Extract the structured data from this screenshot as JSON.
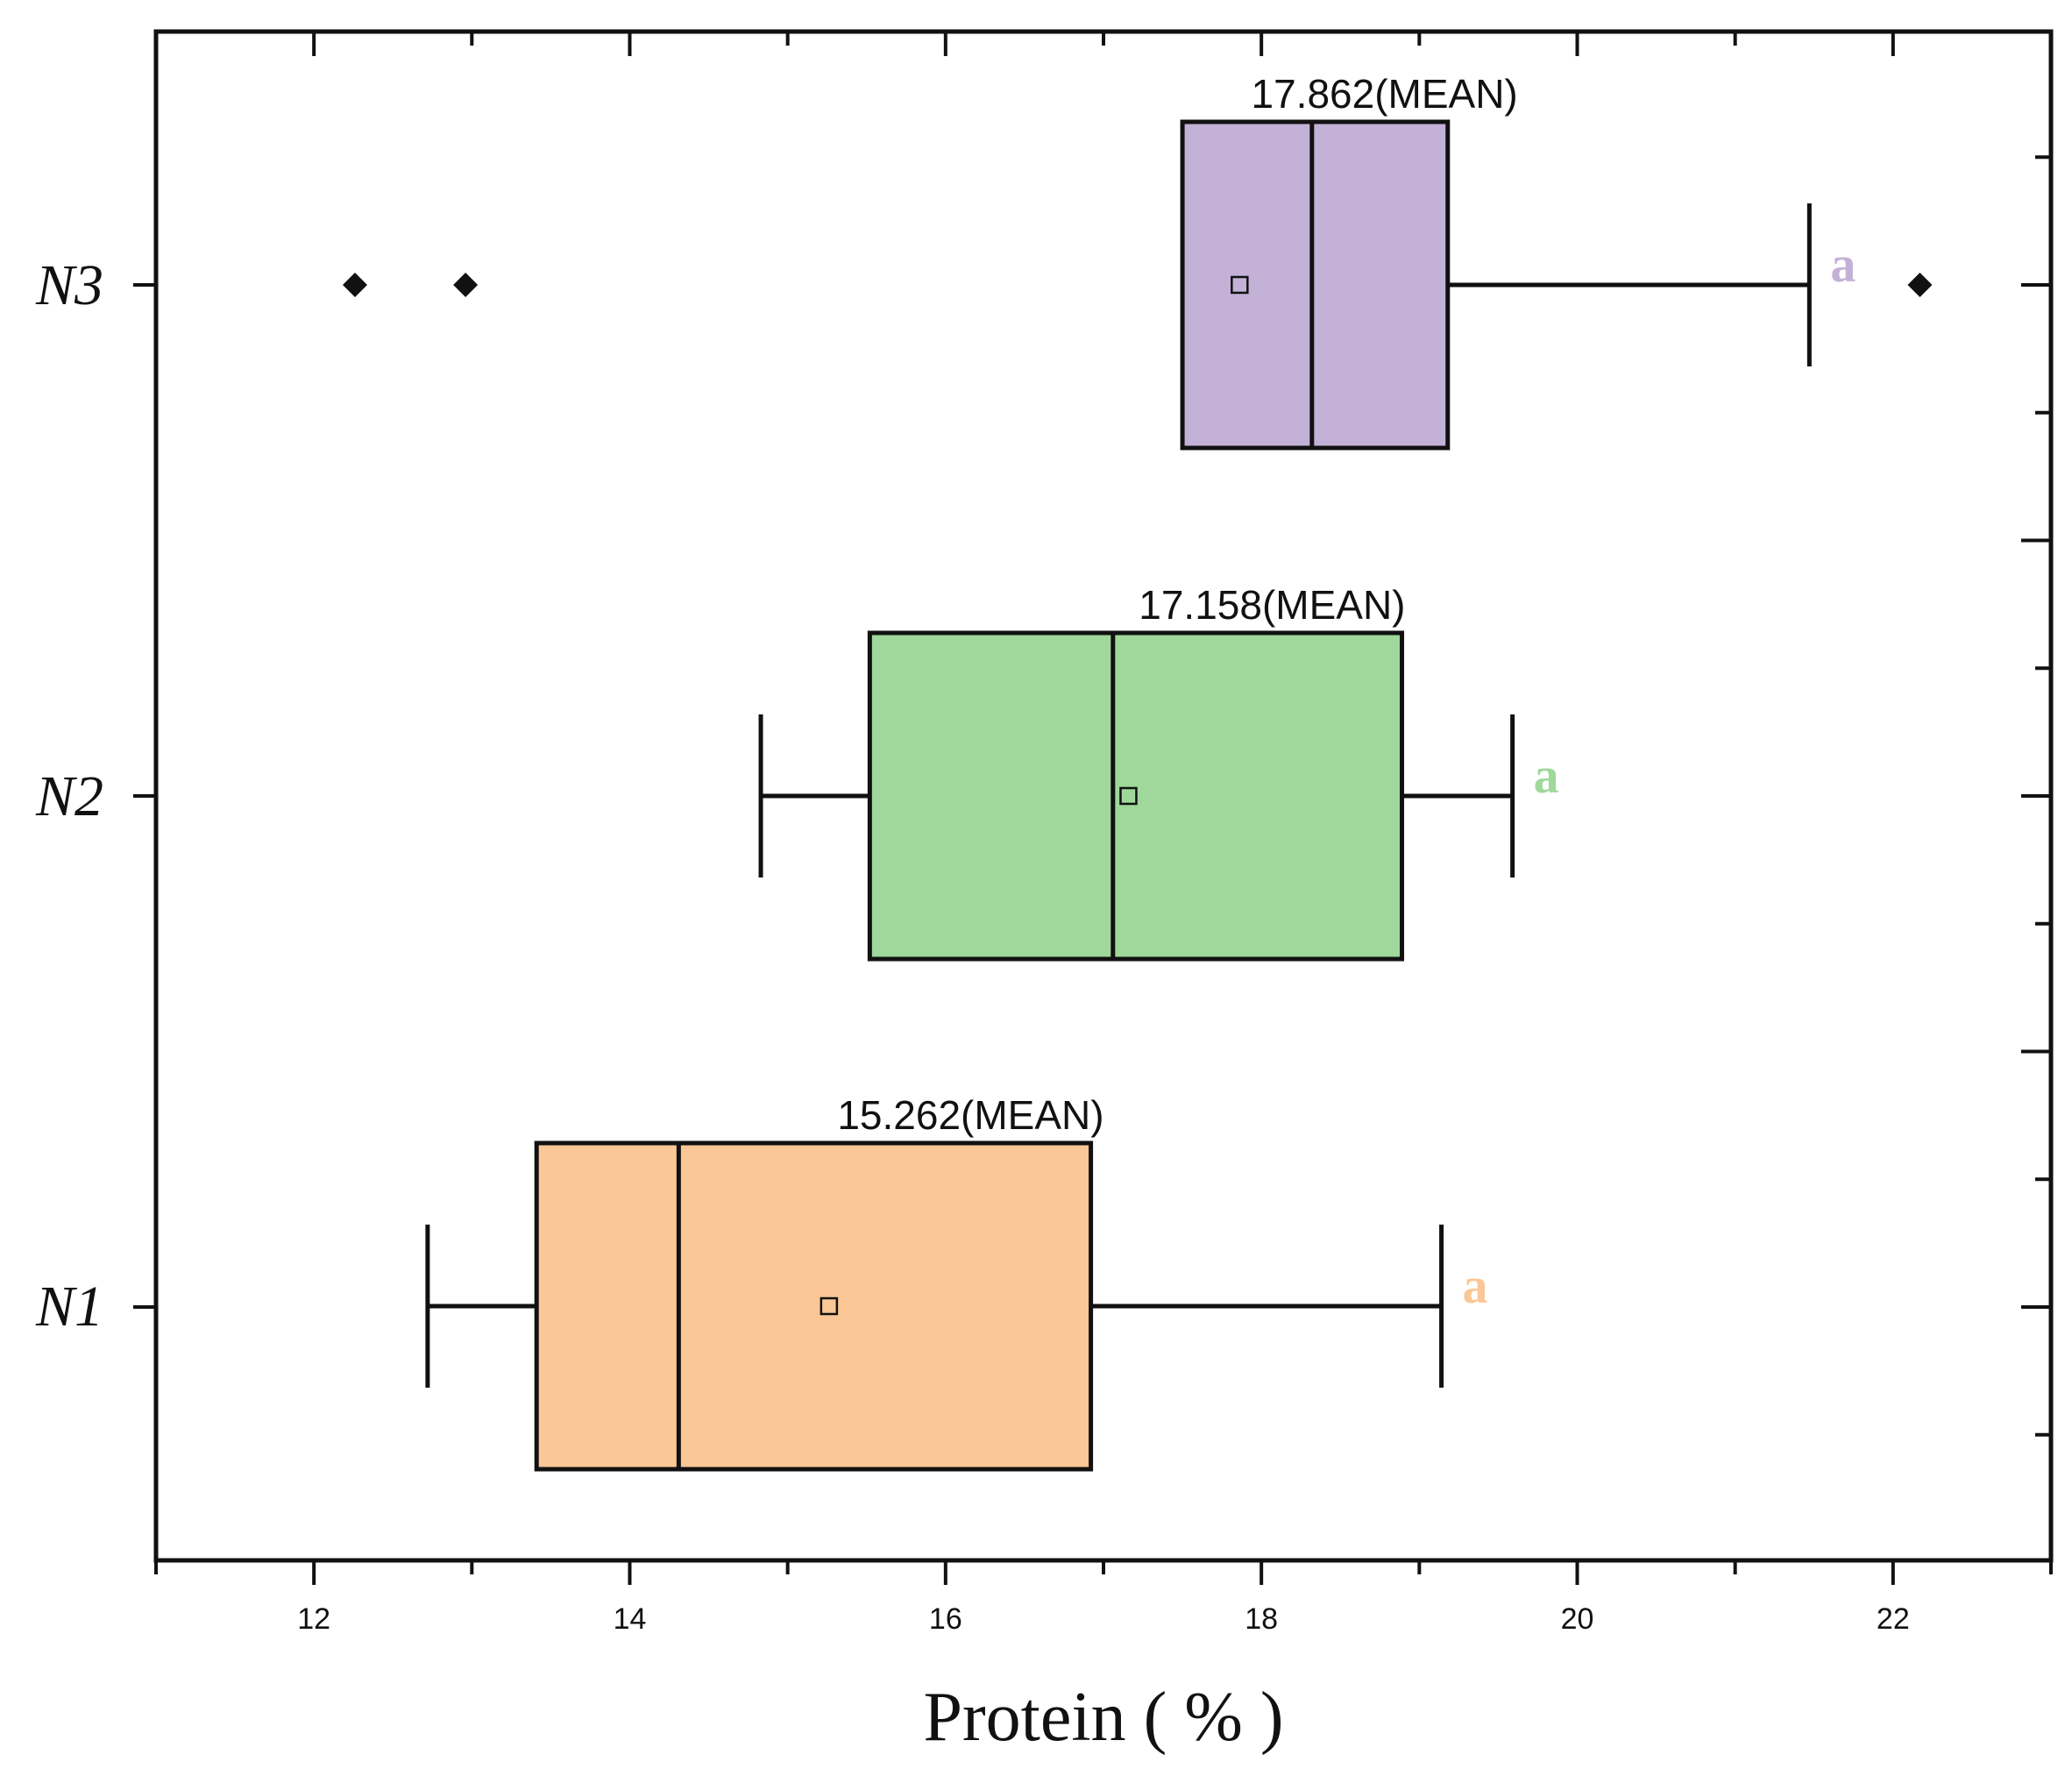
{
  "chart_data": {
    "type": "boxplot",
    "orientation": "horizontal",
    "xlabel": "Protein ( % )",
    "ylabel": "",
    "xlim": [
      11,
      23
    ],
    "x_ticks": [
      12,
      14,
      16,
      18,
      20,
      22
    ],
    "x_tick_labels": [
      "12",
      "14",
      "16",
      "18",
      "20",
      "22"
    ],
    "categories": [
      "N3",
      "N2",
      "N1"
    ],
    "series": [
      {
        "name": "N3",
        "color": "#c3b1d7",
        "whisker_low": 17.5,
        "q1": 17.5,
        "median": 18.32,
        "q3": 19.18,
        "whisker_high": 21.47,
        "mean": 17.862,
        "outliers": [
          12.26,
          12.96,
          22.17
        ],
        "mean_label": "17.862(MEAN)",
        "sig_letter": "a"
      },
      {
        "name": "N2",
        "color": "#9fd89a",
        "whisker_low": 14.83,
        "q1": 15.52,
        "median": 17.06,
        "q3": 18.89,
        "whisker_high": 19.59,
        "mean": 17.158,
        "outliers": [],
        "mean_label": "17.158(MEAN)",
        "sig_letter": "a"
      },
      {
        "name": "N1",
        "color": "#fbc796",
        "whisker_low": 12.72,
        "q1": 13.41,
        "median": 14.31,
        "q3": 16.92,
        "whisker_high": 19.14,
        "mean": 15.262,
        "outliers": [],
        "mean_label": "15.262(MEAN)",
        "sig_letter": "a"
      }
    ]
  }
}
